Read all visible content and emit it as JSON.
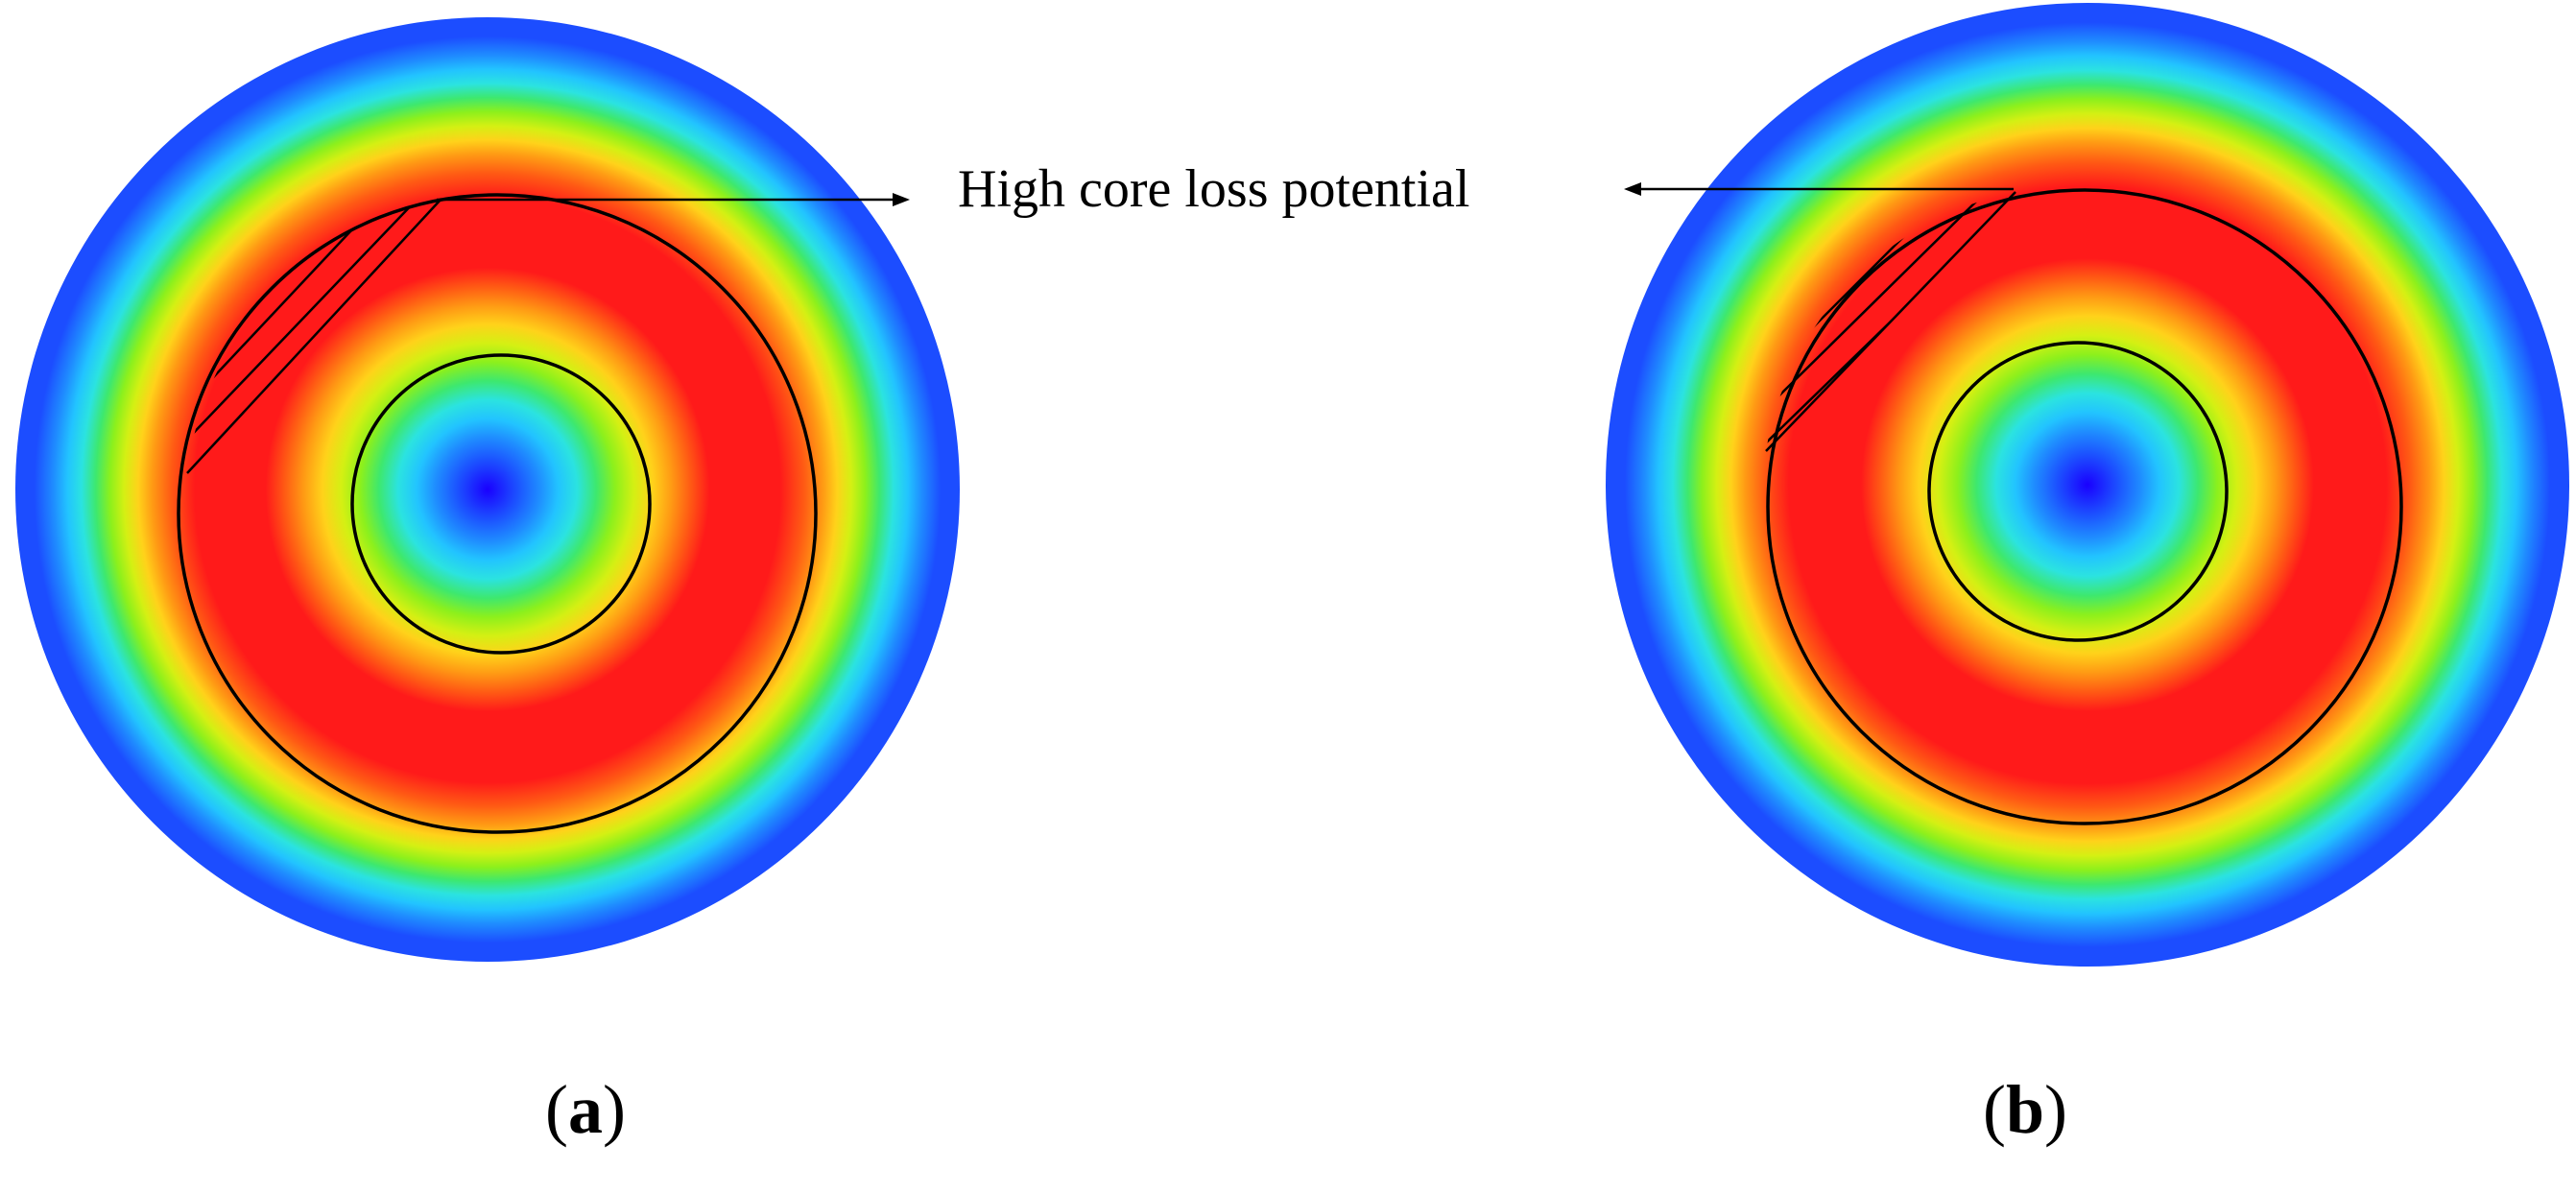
{
  "annotation": {
    "text": "High core loss potential"
  },
  "panels": [
    {
      "label": "a"
    },
    {
      "label": "b"
    }
  ],
  "palette": {
    "bands": [
      "#1a00ff",
      "#1c4dff",
      "#1f8cff",
      "#22c4ff",
      "#2be3e0",
      "#3de86f",
      "#8cf01c",
      "#d4f013",
      "#ffd21a",
      "#ff9a14",
      "#ff5a14",
      "#ff1a1a"
    ],
    "outline": "#000000",
    "arrow": "#000000",
    "background": "#ffffff"
  },
  "legend_note": "colour scale from blue (low) to red (high)"
}
